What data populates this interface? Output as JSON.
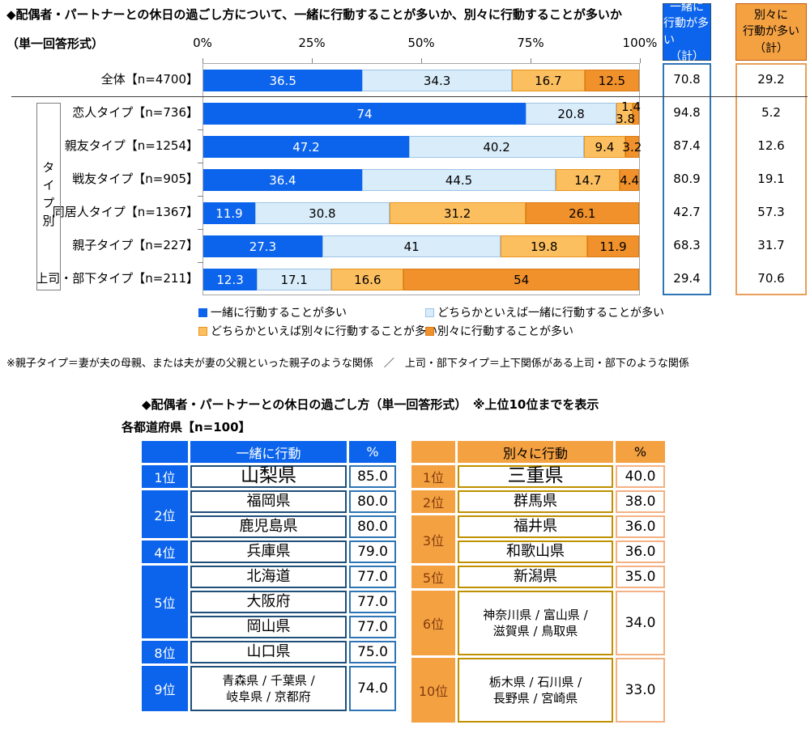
{
  "colors": {
    "blue": "#0C64EC",
    "light_blue": "#D9ECFA",
    "light_blue_border": "#9DC3E6",
    "light_orange": "#FCBF60",
    "light_orange_border": "#E8951F",
    "orange": "#F0912C",
    "orange_border": "#D97A14",
    "table_orange": "#F4A142",
    "table_orange_text": "#843C0C",
    "blue_name_border": "#1F4E79",
    "blue_pct_border": "#2E75B6",
    "orange_name_border": "#BF9000",
    "orange_pct_border": "#F4B183",
    "sum_blue_border": "#2E75B6",
    "sum_orange_border": "#E8A05A"
  },
  "chart": {
    "title": "◆配偶者・パートナーとの休日の過ごし方について、一緒に行動することが多いか、別々に行動することが多いか",
    "subtitle": "（単一回答形式）",
    "group_label": "タイプ別"
  },
  "chart_data": {
    "type": "bar",
    "subtype": "horizontal-stacked",
    "title": "配偶者・パートナーとの休日の過ごし方について、一緒に行動することが多いか、別々に行動することが多いか（単一回答形式）",
    "x_ticks": [
      "0%",
      "25%",
      "50%",
      "75%",
      "100%"
    ],
    "xlim": [
      0,
      100
    ],
    "categories": [
      "全体【n=4700】",
      "恋人タイプ【n=736】",
      "親友タイプ【n=1254】",
      "戦友タイプ【n=905】",
      "同居人タイプ【n=1367】",
      "親子タイプ【n=227】",
      "上司・部下タイプ【n=211】"
    ],
    "series": [
      {
        "name": "一緒に行動することが多い",
        "values": [
          36.5,
          74.0,
          47.2,
          36.4,
          11.9,
          27.3,
          12.3
        ]
      },
      {
        "name": "どちらかといえば一緒に行動することが多い",
        "values": [
          34.3,
          20.8,
          40.2,
          44.5,
          30.8,
          41.0,
          17.1
        ]
      },
      {
        "name": "どちらかといえば別々に行動することが多い",
        "values": [
          16.7,
          3.8,
          9.4,
          14.7,
          31.2,
          19.8,
          16.6
        ]
      },
      {
        "name": "別々に行動することが多い",
        "values": [
          12.5,
          1.4,
          3.2,
          4.4,
          26.1,
          11.9,
          54.0
        ]
      }
    ],
    "together_total": {
      "header_lines": [
        "一緒に",
        "行動が多い",
        "（計）"
      ],
      "values": [
        70.8,
        94.8,
        87.4,
        80.9,
        42.7,
        68.3,
        29.4
      ]
    },
    "separate_total": {
      "header_lines": [
        "別々に",
        "行動が多い",
        "（計）"
      ],
      "values": [
        29.2,
        5.2,
        12.6,
        19.1,
        57.3,
        31.7,
        70.6
      ]
    }
  },
  "legend": [
    {
      "label": "一緒に行動することが多い",
      "color_key": "blue"
    },
    {
      "label": "どちらかといえば一緒に行動することが多い",
      "color_key": "light_blue"
    },
    {
      "label": "どちらかといえば別々に行動することが多い",
      "color_key": "light_orange"
    },
    {
      "label": "別々に行動することが多い",
      "color_key": "orange"
    }
  ],
  "footnote": "※親子タイプ＝妻が夫の母親、または夫が妻の父親といった親子のような関係　／　上司・部下タイプ＝上下関係がある上司・部下のような関係",
  "ranking": {
    "title": "◆配偶者・パートナーとの休日の過ごし方（単一回答形式）　※上位10位までを表示",
    "subtitle": "各都道府県【n=100】",
    "together": {
      "action_header": "一緒に行動",
      "pct_header": "%",
      "ranks": [
        {
          "label": "1位",
          "span": 1
        },
        {
          "label": "2位",
          "span": 2
        },
        {
          "label": "4位",
          "span": 1
        },
        {
          "label": "5位",
          "span": 3
        },
        {
          "label": "8位",
          "span": 1
        },
        {
          "label": "9位",
          "span": 1
        }
      ],
      "rows": [
        {
          "lines": [
            "山梨県"
          ],
          "value": "85.0"
        },
        {
          "lines": [
            "福岡県"
          ],
          "value": "80.0"
        },
        {
          "lines": [
            "鹿児島県"
          ],
          "value": "80.0"
        },
        {
          "lines": [
            "兵庫県"
          ],
          "value": "79.0"
        },
        {
          "lines": [
            "北海道"
          ],
          "value": "77.0"
        },
        {
          "lines": [
            "大阪府"
          ],
          "value": "77.0"
        },
        {
          "lines": [
            "岡山県"
          ],
          "value": "77.0"
        },
        {
          "lines": [
            "山口県"
          ],
          "value": "75.0"
        },
        {
          "lines": [
            "青森県 / 千葉県 /",
            "岐阜県 / 京都府"
          ],
          "value": "74.0"
        }
      ]
    },
    "separate": {
      "action_header": "別々に行動",
      "pct_header": "%",
      "ranks": [
        {
          "label": "1位",
          "span": 1
        },
        {
          "label": "2位",
          "span": 1
        },
        {
          "label": "3位",
          "span": 2
        },
        {
          "label": "5位",
          "span": 1
        },
        {
          "label": "6位",
          "span": 1
        },
        {
          "label": "10位",
          "span": 1
        }
      ],
      "rows": [
        {
          "lines": [
            "三重県"
          ],
          "value": "40.0"
        },
        {
          "lines": [
            "群馬県"
          ],
          "value": "38.0"
        },
        {
          "lines": [
            "福井県"
          ],
          "value": "36.0"
        },
        {
          "lines": [
            "和歌山県"
          ],
          "value": "36.0"
        },
        {
          "lines": [
            "新潟県"
          ],
          "value": "35.0"
        },
        {
          "lines": [
            "神奈川県 / 富山県 /",
            "滋賀県 / 鳥取県"
          ],
          "value": "34.0"
        },
        {
          "lines": [
            "栃木県 / 石川県 /",
            "長野県 / 宮崎県"
          ],
          "value": "33.0"
        }
      ]
    }
  }
}
